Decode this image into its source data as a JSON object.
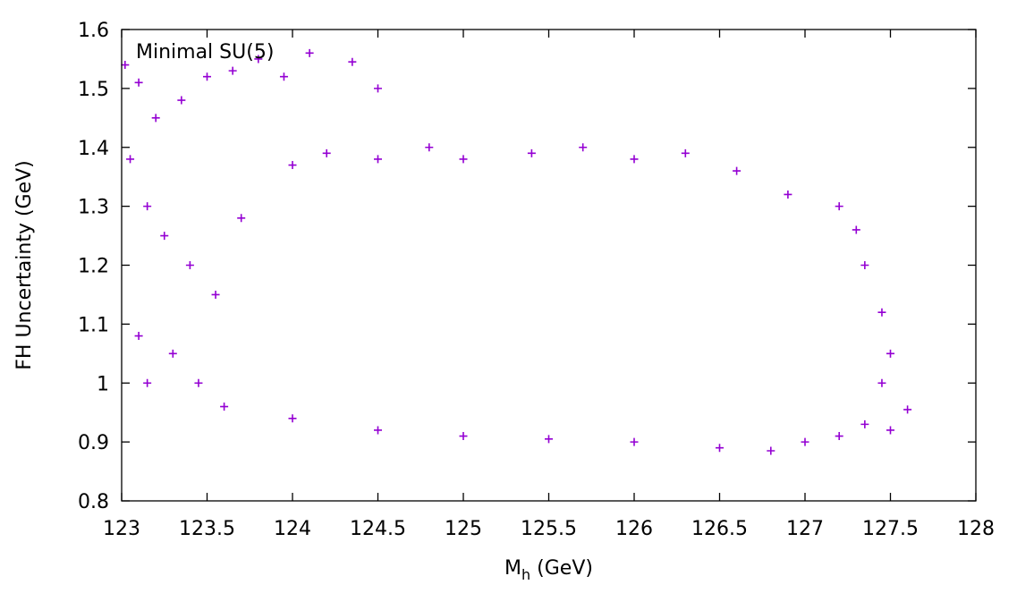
{
  "chart_data": {
    "type": "scatter",
    "marker": "+",
    "color": "#9400d3",
    "annotation": "Minimal SU(5)",
    "xlabel": "M",
    "xlabel_sub": "h",
    "xlabel_suffix": " (GeV)",
    "ylabel": "FH Uncertainty (GeV)",
    "xlim": [
      123,
      128
    ],
    "ylim": [
      0.8,
      1.6
    ],
    "xticks": [
      123,
      123.5,
      124,
      124.5,
      125,
      125.5,
      126,
      126.5,
      127,
      127.5,
      128
    ],
    "xtick_labels": [
      "123",
      "123.5",
      "124",
      "124.5",
      "125",
      "125.5",
      "126",
      "126.5",
      "127",
      "127.5",
      "128"
    ],
    "yticks": [
      0.8,
      0.9,
      1.0,
      1.1,
      1.2,
      1.3,
      1.4,
      1.5,
      1.6
    ],
    "ytick_labels": [
      "0.8",
      "0.9",
      "1",
      "1.1",
      "1.2",
      "1.3",
      "1.4",
      "1.5",
      "1.6"
    ],
    "points": [
      [
        123.02,
        1.54
      ],
      [
        123.1,
        1.51
      ],
      [
        123.2,
        1.45
      ],
      [
        123.35,
        1.48
      ],
      [
        123.5,
        1.52
      ],
      [
        123.65,
        1.53
      ],
      [
        123.8,
        1.55
      ],
      [
        123.95,
        1.52
      ],
      [
        124.1,
        1.56
      ],
      [
        124.35,
        1.545
      ],
      [
        124.5,
        1.5
      ],
      [
        123.05,
        1.38
      ],
      [
        123.15,
        1.3
      ],
      [
        123.25,
        1.25
      ],
      [
        123.4,
        1.2
      ],
      [
        123.55,
        1.15
      ],
      [
        123.7,
        1.28
      ],
      [
        123.1,
        1.08
      ],
      [
        123.3,
        1.05
      ],
      [
        123.15,
        1.0
      ],
      [
        123.45,
        1.0
      ],
      [
        123.6,
        0.96
      ],
      [
        124.0,
        0.94
      ],
      [
        124.5,
        0.92
      ],
      [
        125.0,
        0.91
      ],
      [
        125.5,
        0.905
      ],
      [
        126.0,
        0.9
      ],
      [
        126.5,
        0.89
      ],
      [
        126.8,
        0.885
      ],
      [
        127.0,
        0.9
      ],
      [
        127.2,
        0.91
      ],
      [
        127.35,
        0.93
      ],
      [
        127.5,
        0.92
      ],
      [
        127.6,
        0.955
      ],
      [
        127.45,
        1.0
      ],
      [
        127.5,
        1.05
      ],
      [
        127.45,
        1.12
      ],
      [
        127.35,
        1.2
      ],
      [
        127.3,
        1.26
      ],
      [
        127.2,
        1.3
      ],
      [
        126.9,
        1.32
      ],
      [
        126.6,
        1.36
      ],
      [
        126.3,
        1.39
      ],
      [
        126.0,
        1.38
      ],
      [
        125.7,
        1.4
      ],
      [
        125.4,
        1.39
      ],
      [
        125.0,
        1.38
      ],
      [
        124.8,
        1.4
      ],
      [
        124.5,
        1.38
      ],
      [
        124.2,
        1.39
      ],
      [
        124.0,
        1.37
      ]
    ]
  }
}
